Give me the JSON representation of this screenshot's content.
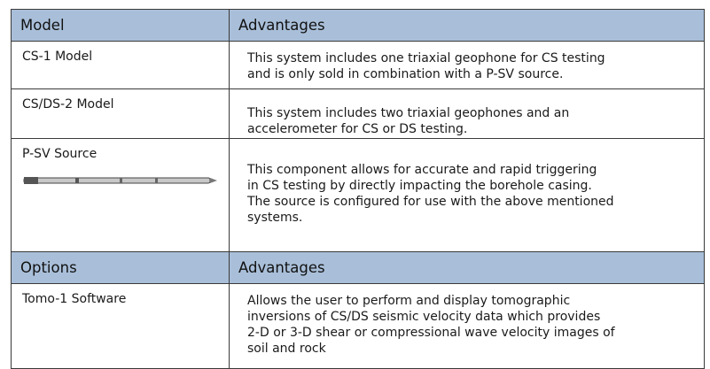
{
  "table": {
    "header": [
      "Model",
      "Advantages"
    ],
    "rows": [
      {
        "name": "CS-1 Model",
        "lines": [
          "This system includes one triaxial geophone for CS testing",
          "and is only sold in combination with a P-SV source."
        ]
      },
      {
        "name": "CS/DS-2 Model",
        "lines": [
          "This system includes two triaxial geophones and an",
          "accelerometer for CS or DS testing."
        ]
      },
      {
        "name": "P-SV Source",
        "lines": [
          "This component allows for accurate and rapid triggering",
          "in CS testing by directly impacting the borehole casing.",
          "The source is configured for use with the above mentioned",
          "systems."
        ]
      }
    ],
    "header2": [
      "Options",
      "Advantages"
    ],
    "rows2": [
      {
        "name": "Tomo-1 Software",
        "lines": [
          "Allows the user to perform and display tomographic",
          "inversions of CS/DS seismic velocity data which provides",
          "2-D or 3-D shear or compressional wave velocity images of",
          "soil and rock"
        ]
      }
    ]
  }
}
